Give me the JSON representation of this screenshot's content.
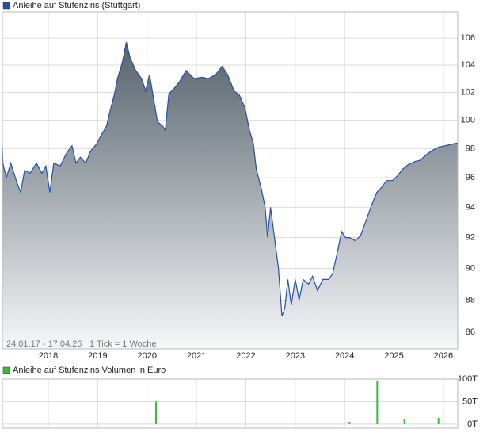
{
  "chart_data": [
    {
      "type": "area",
      "log_scale": true,
      "grid": true,
      "date_range": "24.01.17 - 17.04.26",
      "tick_note": "1 Tick = 1 Woche",
      "x": [
        2017.07,
        2017.08,
        2017.15,
        2017.24,
        2017.35,
        2017.44,
        2017.52,
        2017.63,
        2017.76,
        2017.87,
        2017.95,
        2018.03,
        2018.11,
        2018.24,
        2018.37,
        2018.48,
        2018.56,
        2018.65,
        2018.76,
        2018.85,
        2018.97,
        2019.08,
        2019.18,
        2019.24,
        2019.34,
        2019.4,
        2019.5,
        2019.58,
        2019.66,
        2019.77,
        2019.89,
        2019.97,
        2020.05,
        2020.13,
        2020.21,
        2020.31,
        2020.37,
        2020.44,
        2020.53,
        2020.66,
        2020.79,
        2020.95,
        2021.11,
        2021.24,
        2021.39,
        2021.52,
        2021.63,
        2021.76,
        2021.87,
        2021.98,
        2022.08,
        2022.15,
        2022.21,
        2022.31,
        2022.39,
        2022.44,
        2022.5,
        2022.58,
        2022.66,
        2022.73,
        2022.79,
        2022.85,
        2022.92,
        2023.0,
        2023.08,
        2023.16,
        2023.27,
        2023.35,
        2023.45,
        2023.56,
        2023.68,
        2023.76,
        2023.85,
        2023.94,
        2024.02,
        2024.1,
        2024.21,
        2024.32,
        2024.42,
        2024.53,
        2024.65,
        2024.74,
        2024.85,
        2024.97,
        2025.06,
        2025.18,
        2025.29,
        2025.42,
        2025.53,
        2025.66,
        2025.79,
        2025.9,
        2026.03,
        2026.15,
        2026.29
      ],
      "series": [
        {
          "name": "Anleihe auf Stufenzins (Stuttgart)",
          "color": "#2450a8",
          "values": [
            98.2,
            97.0,
            96.0,
            97.0,
            95.8,
            95.0,
            96.5,
            96.3,
            97.0,
            96.3,
            96.8,
            95.0,
            97.0,
            96.8,
            97.7,
            98.2,
            97.0,
            97.4,
            97.0,
            97.8,
            98.3,
            99.0,
            99.6,
            100.5,
            101.9,
            103.0,
            104.2,
            105.7,
            104.5,
            103.6,
            103.0,
            102.1,
            103.3,
            101.6,
            99.9,
            99.6,
            99.3,
            101.9,
            102.2,
            102.8,
            103.6,
            103.0,
            103.1,
            103.0,
            103.3,
            103.9,
            103.3,
            102.1,
            101.8,
            100.9,
            99.2,
            98.4,
            96.6,
            95.3,
            94.0,
            92.0,
            94.0,
            92.0,
            90.0,
            87.0,
            87.5,
            89.3,
            87.7,
            89.3,
            88.0,
            89.3,
            89.0,
            89.5,
            88.6,
            89.3,
            89.3,
            89.7,
            91.0,
            92.4,
            92.0,
            92.0,
            91.8,
            92.1,
            93.0,
            94.0,
            95.0,
            95.3,
            95.8,
            95.8,
            96.1,
            96.6,
            96.9,
            97.1,
            97.2,
            97.6,
            97.9,
            98.1,
            98.2,
            98.3,
            98.4
          ]
        }
      ],
      "xlim": [
        2017.07,
        2026.29
      ],
      "xticks": [
        2018,
        2019,
        2020,
        2021,
        2022,
        2023,
        2024,
        2025,
        2026
      ],
      "ylim": [
        85,
        108
      ],
      "yticks": [
        86,
        88,
        90,
        92,
        94,
        96,
        98,
        100,
        102,
        104,
        106
      ]
    },
    {
      "type": "bar",
      "grid": true,
      "x": [
        2020.18,
        2024.1,
        2024.66,
        2025.21,
        2025.9
      ],
      "series": [
        {
          "name": "Anleihe auf Stufenzins Volumen in Euro",
          "color": "#3cb83c",
          "values": [
            50000,
            5000,
            97000,
            12000,
            14000
          ]
        }
      ],
      "xlim": [
        2017.07,
        2026.29
      ],
      "xticks": [
        2018,
        2019,
        2020,
        2021,
        2022,
        2023,
        2024,
        2025,
        2026
      ],
      "ylim": [
        -9000,
        100000
      ],
      "yticks": [
        {
          "value": 0,
          "label": "0T"
        },
        {
          "value": 50000,
          "label": "50T"
        },
        {
          "value": 100000,
          "label": "100T"
        }
      ]
    }
  ]
}
